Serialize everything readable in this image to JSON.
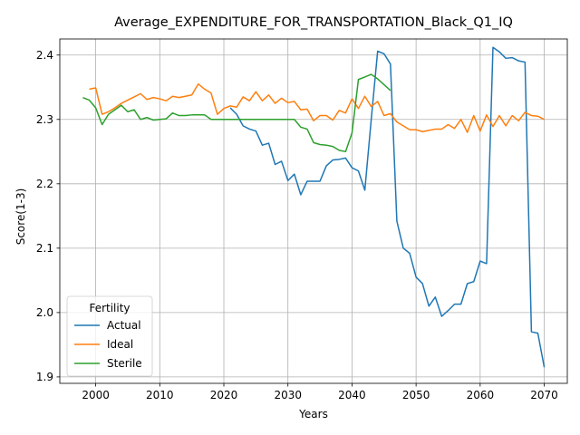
{
  "chart_data": {
    "type": "line",
    "title": "Average_EXPENDITURE_FOR_TRANSPORTATION_Black_Q1_IQ",
    "xlabel": "Years",
    "ylabel": "Score(1-3)",
    "xlim": [
      1994.4,
      2073.6
    ],
    "ylim": [
      1.89,
      2.425
    ],
    "xticks": [
      2000,
      2010,
      2020,
      2030,
      2040,
      2050,
      2060,
      2070
    ],
    "yticks": [
      1.9,
      2.0,
      2.1,
      2.2,
      2.3,
      2.4
    ],
    "grid": true,
    "legend": {
      "title": "Fertility",
      "placement": "lower-left"
    },
    "series": [
      {
        "name": "Actual",
        "color": "#1f77b4",
        "x": [
          2021,
          2022,
          2023,
          2024,
          2025,
          2026,
          2027,
          2028,
          2029,
          2030,
          2031,
          2032,
          2033,
          2034,
          2035,
          2036,
          2037,
          2038,
          2039,
          2040,
          2041,
          2042,
          2043,
          2044,
          2045,
          2046,
          2047,
          2048,
          2049,
          2050,
          2051,
          2052,
          2053,
          2054,
          2055,
          2056,
          2057,
          2058,
          2059,
          2060,
          2061,
          2062,
          2063,
          2064,
          2065,
          2066,
          2067,
          2068,
          2069,
          2070
        ],
        "y": [
          2.318,
          2.308,
          2.29,
          2.285,
          2.282,
          2.26,
          2.263,
          2.23,
          2.235,
          2.205,
          2.215,
          2.183,
          2.204,
          2.204,
          2.204,
          2.228,
          2.237,
          2.238,
          2.24,
          2.225,
          2.22,
          2.19,
          2.3,
          2.406,
          2.402,
          2.386,
          2.142,
          2.1,
          2.092,
          2.055,
          2.045,
          2.01,
          2.024,
          1.994,
          2.003,
          2.013,
          2.013,
          2.045,
          2.048,
          2.08,
          2.076,
          2.412,
          2.405,
          2.395,
          2.396,
          2.391,
          2.389,
          1.97,
          1.968,
          1.915
        ]
      },
      {
        "name": "Ideal",
        "color": "#ff7f0e",
        "x": [
          1999,
          2000,
          2001,
          2002,
          2003,
          2004,
          2005,
          2006,
          2007,
          2008,
          2009,
          2010,
          2011,
          2012,
          2013,
          2014,
          2015,
          2016,
          2017,
          2018,
          2019,
          2020,
          2021,
          2022,
          2023,
          2024,
          2025,
          2026,
          2027,
          2028,
          2029,
          2030,
          2031,
          2032,
          2033,
          2034,
          2035,
          2036,
          2037,
          2038,
          2039,
          2040,
          2041,
          2042,
          2043,
          2044,
          2045,
          2046,
          2047,
          2048,
          2049,
          2050,
          2051,
          2052,
          2053,
          2054,
          2055,
          2056,
          2057,
          2058,
          2059,
          2060,
          2061,
          2062,
          2063,
          2064,
          2065,
          2066,
          2067,
          2068,
          2069,
          2070
        ],
        "y": [
          2.347,
          2.349,
          2.308,
          2.312,
          2.318,
          2.325,
          2.33,
          2.335,
          2.34,
          2.331,
          2.334,
          2.332,
          2.329,
          2.336,
          2.334,
          2.336,
          2.338,
          2.355,
          2.347,
          2.341,
          2.308,
          2.317,
          2.321,
          2.319,
          2.335,
          2.329,
          2.343,
          2.329,
          2.338,
          2.325,
          2.333,
          2.326,
          2.328,
          2.315,
          2.316,
          2.298,
          2.306,
          2.306,
          2.299,
          2.314,
          2.31,
          2.332,
          2.317,
          2.336,
          2.32,
          2.328,
          2.306,
          2.309,
          2.296,
          2.29,
          2.284,
          2.284,
          2.281,
          2.283,
          2.285,
          2.285,
          2.292,
          2.286,
          2.3,
          2.28,
          2.306,
          2.282,
          2.307,
          2.289,
          2.306,
          2.29,
          2.306,
          2.298,
          2.311,
          2.306,
          2.305,
          2.3
        ]
      },
      {
        "name": "Sterile",
        "color": "#2ca02c",
        "x": [
          1998,
          1999,
          2000,
          2001,
          2002,
          2003,
          2004,
          2005,
          2006,
          2007,
          2008,
          2009,
          2010,
          2011,
          2012,
          2013,
          2014,
          2015,
          2016,
          2017,
          2018,
          2019,
          2020,
          2021,
          2022,
          2023,
          2024,
          2025,
          2026,
          2027,
          2028,
          2029,
          2030,
          2031,
          2032,
          2033,
          2034,
          2035,
          2036,
          2037,
          2038,
          2039,
          2040,
          2041,
          2042,
          2043,
          2044,
          2045,
          2046
        ],
        "y": [
          2.334,
          2.33,
          2.318,
          2.292,
          2.308,
          2.315,
          2.322,
          2.312,
          2.315,
          2.3,
          2.303,
          2.299,
          2.3,
          2.301,
          2.31,
          2.306,
          2.306,
          2.307,
          2.307,
          2.307,
          2.3,
          2.3,
          2.3,
          2.3,
          2.3,
          2.3,
          2.3,
          2.3,
          2.3,
          2.3,
          2.3,
          2.3,
          2.3,
          2.3,
          2.288,
          2.285,
          2.264,
          2.261,
          2.26,
          2.258,
          2.252,
          2.25,
          2.279,
          2.362,
          2.366,
          2.37,
          2.363,
          2.354,
          2.345
        ]
      }
    ]
  }
}
